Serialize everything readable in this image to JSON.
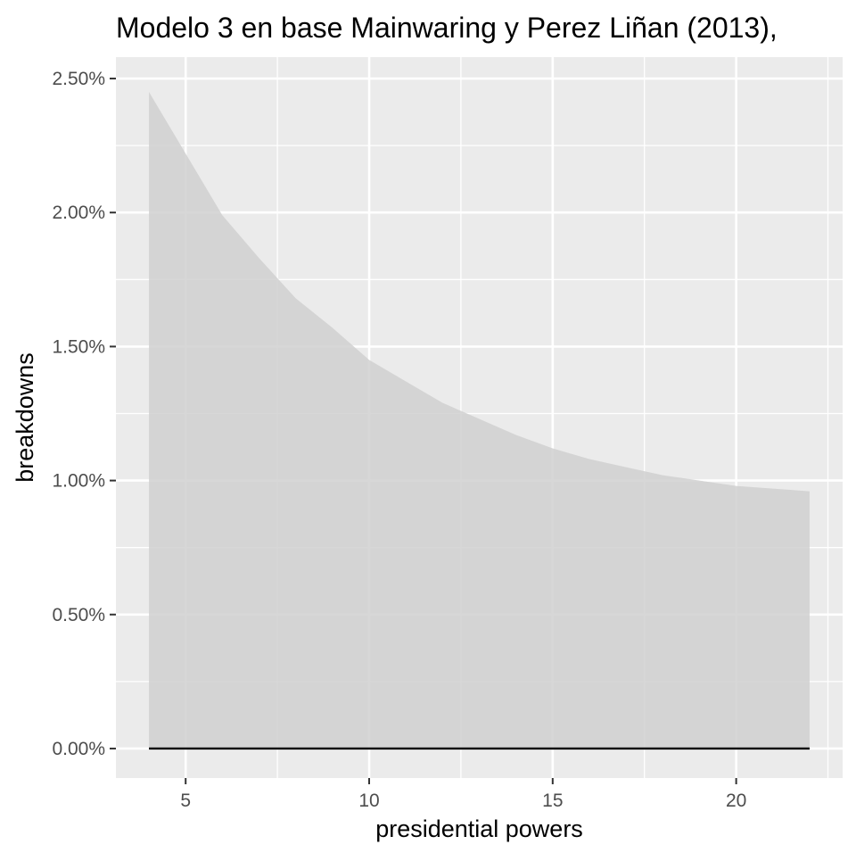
{
  "chart_data": {
    "type": "area",
    "title": "Modelo 3 en base Mainwaring y Perez Liñan (2013),",
    "xlabel": "presidential powers",
    "ylabel": "breakdowns",
    "x_range": [
      3.1,
      22.9
    ],
    "y_range": [
      -0.0011,
      0.0258
    ],
    "x_ticks": [
      5,
      10,
      15,
      20
    ],
    "x_tick_labels": [
      "5",
      "10",
      "15",
      "20"
    ],
    "x_minor_ticks": [
      7.5,
      12.5,
      17.5,
      22.5
    ],
    "y_ticks": [
      0,
      0.005,
      0.01,
      0.015,
      0.02,
      0.025
    ],
    "y_tick_labels": [
      "0.00%",
      "0.50%",
      "1.00%",
      "1.50%",
      "2.00%",
      "2.50%"
    ],
    "y_minor_ticks": [
      0.0025,
      0.0075,
      0.0125,
      0.0175,
      0.0225
    ],
    "grid": true,
    "panel_background": "#ebebeb",
    "ribbon_fill": "#d0d0d0",
    "baseline_color": "#000000",
    "grid_color": "#ffffff",
    "series": [
      {
        "x": [
          4,
          5,
          6,
          7,
          8,
          9,
          10,
          11,
          12,
          13,
          14,
          15,
          16,
          17,
          18,
          19,
          20,
          21,
          22
        ],
        "upper": [
          0.0245,
          0.0222,
          0.0199,
          0.0183,
          0.0168,
          0.0157,
          0.0145,
          0.0137,
          0.0129,
          0.0123,
          0.0117,
          0.0112,
          0.0108,
          0.0105,
          0.0102,
          0.01,
          0.0098,
          0.0097,
          0.0096
        ],
        "lower": [
          0,
          0,
          0,
          0,
          0,
          0,
          0,
          0,
          0,
          0,
          0,
          0,
          0,
          0,
          0,
          0,
          0,
          0,
          0
        ]
      }
    ]
  }
}
